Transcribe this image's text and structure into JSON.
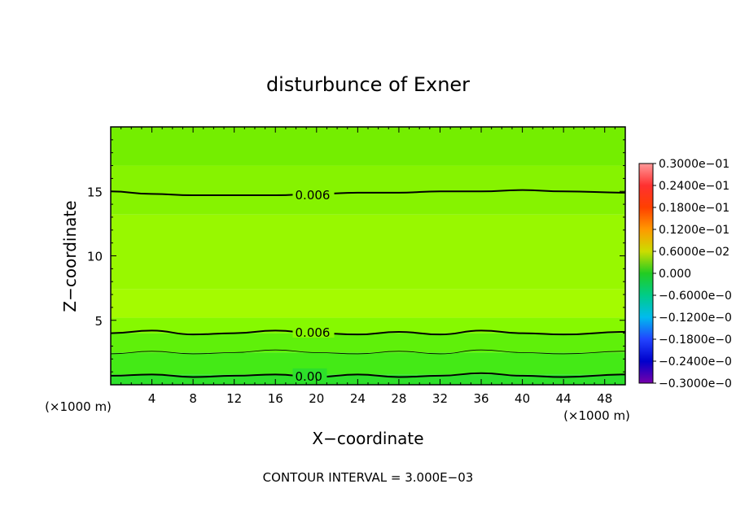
{
  "chart_data": {
    "type": "heatmap",
    "title": "disturbunce of Exner",
    "xlabel": "X−coordinate",
    "ylabel": "Z−coordinate",
    "x_unit": "(×1000 m)",
    "y_unit": "(×1000 m)",
    "xlim": [
      0,
      50
    ],
    "ylim": [
      0,
      20
    ],
    "x_ticks": [
      4,
      8,
      12,
      16,
      20,
      24,
      28,
      32,
      36,
      40,
      44,
      48
    ],
    "y_ticks": [
      5,
      10,
      15
    ],
    "colorbar": {
      "min": -0.03,
      "max": 0.03,
      "labels": [
        "0.3000e−01",
        "0.2400e−01",
        "0.1800e−01",
        "0.1200e−01",
        "0.6000e−02",
        "0.000",
        "−0.6000e−0",
        "−0.1200e−0",
        "−0.1800e−0",
        "−0.2400e−0",
        "−0.3000e−0"
      ],
      "colors": [
        "#ff9999",
        "#ff3030",
        "#ff4000",
        "#ff9900",
        "#ccdd00",
        "#22cc22",
        "#00cc88",
        "#00bbee",
        "#2244ff",
        "#0000cc",
        "#7700aa"
      ]
    },
    "field_bands": [
      {
        "z": [
          0.0,
          0.8
        ],
        "color": "#2de02a"
      },
      {
        "z": [
          0.8,
          2.5
        ],
        "color": "#44ea16"
      },
      {
        "z": [
          2.5,
          4.0
        ],
        "color": "#5ff00a"
      },
      {
        "z": [
          4.0,
          5.2
        ],
        "color": "#86f900"
      },
      {
        "z": [
          5.2,
          7.4
        ],
        "color": "#a4fb00"
      },
      {
        "z": [
          7.4,
          13.2
        ],
        "color": "#98f800"
      },
      {
        "z": [
          13.2,
          17.0
        ],
        "color": "#86f300"
      },
      {
        "z": [
          17.0,
          20.0
        ],
        "color": "#74ee00"
      }
    ],
    "contours": [
      {
        "level_label": "0.006",
        "z": [
          15.0,
          14.8,
          14.7,
          14.7,
          14.7,
          14.8,
          14.9,
          14.9,
          15.0,
          15.0,
          15.1,
          15.0,
          14.9
        ],
        "label_at_x": 18
      },
      {
        "level_label": "0.006",
        "z": [
          4.0,
          4.2,
          3.9,
          4.0,
          4.2,
          4.0,
          3.9,
          4.1,
          3.9,
          4.2,
          4.0,
          3.9,
          4.1
        ],
        "label_at_x": 18
      },
      {
        "level_label": "",
        "z": [
          2.4,
          2.6,
          2.4,
          2.5,
          2.7,
          2.5,
          2.4,
          2.6,
          2.4,
          2.7,
          2.5,
          2.4,
          2.6
        ],
        "label_at_x": null
      },
      {
        "level_label": "0.00",
        "z": [
          0.7,
          0.8,
          0.6,
          0.7,
          0.8,
          0.6,
          0.8,
          0.6,
          0.7,
          0.9,
          0.7,
          0.6,
          0.8
        ],
        "label_at_x": 18
      }
    ],
    "contour_x": [
      0,
      4,
      8,
      12,
      16,
      20,
      24,
      28,
      32,
      36,
      40,
      44,
      50
    ],
    "footnote": "CONTOUR INTERVAL = 3.000E−03"
  }
}
